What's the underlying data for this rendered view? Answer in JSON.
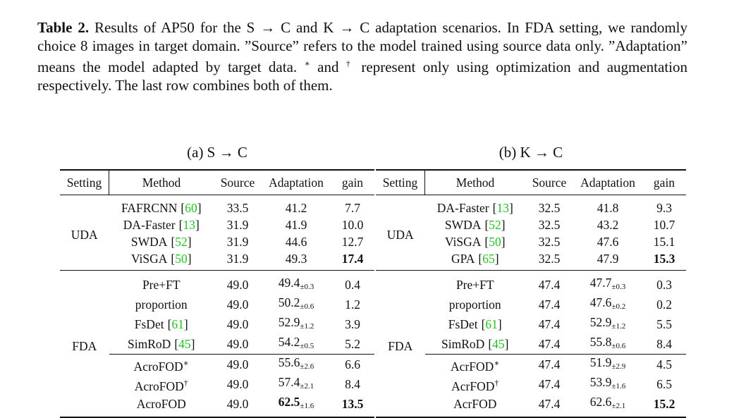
{
  "caption": {
    "label": "Table 2.",
    "text": "Results of AP50 for the S → C and K → C adaptation scenarios. In FDA setting, we randomly choice 8 images in target domain. ”Source” refers to the model trained using source data only. ”Adaptation” means the model adapted by target data.",
    "sym1": "∗",
    "mid": "and",
    "sym2": "†",
    "rest": "represent only using optimization and augmentation respectively. The last row combines both of them."
  },
  "tables": [
    {
      "title": "(a) S → C",
      "header": [
        "Setting",
        "Method",
        "Source",
        "Adaptation",
        "gain"
      ],
      "groups": [
        {
          "setting": "UDA",
          "blocks": [
            [
              {
                "method": "FAFRCNN",
                "cite": "[60]",
                "source": "33.5",
                "adaptation": "41.2",
                "gain": "7.7"
              },
              {
                "method": "DA-Faster",
                "cite": "[13]",
                "source": "31.9",
                "adaptation": "41.9",
                "gain": "10.0"
              },
              {
                "method": "SWDA",
                "cite": "[52]",
                "source": "31.9",
                "adaptation": "44.6",
                "gain": "12.7"
              },
              {
                "method": "ViSGA",
                "cite": "[50]",
                "source": "31.9",
                "adaptation": "49.3",
                "gain": "17.4",
                "bold": [
                  "gain"
                ]
              }
            ]
          ]
        },
        {
          "setting": "FDA",
          "blocks": [
            [
              {
                "method": "Pre+FT",
                "source": "49.0",
                "adaptation": "49.4",
                "std": "±0.3",
                "gain": "0.4"
              },
              {
                "method": "proportion",
                "source": "49.0",
                "adaptation": "50.2",
                "std": "±0.6",
                "gain": "1.2"
              },
              {
                "method": "FsDet",
                "cite": "[61]",
                "source": "49.0",
                "adaptation": "52.9",
                "std": "±1.2",
                "gain": "3.9"
              },
              {
                "method": "SimRoD",
                "cite": "[45]",
                "source": "49.0",
                "adaptation": "54.2",
                "std": "±0.5",
                "gain": "5.2"
              }
            ],
            [
              {
                "method": "AcroFOD",
                "sup": "∗",
                "source": "49.0",
                "adaptation": "55.6",
                "std": "±2.6",
                "gain": "6.6"
              },
              {
                "method": "AcroFOD",
                "sup": "†",
                "source": "49.0",
                "adaptation": "57.4",
                "std": "±2.1",
                "gain": "8.4"
              },
              {
                "method": "AcroFOD",
                "source": "49.0",
                "adaptation": "62.5",
                "std": "±1.6",
                "gain": "13.5",
                "bold": [
                  "adaptation",
                  "gain"
                ]
              }
            ]
          ]
        }
      ]
    },
    {
      "title": "(b) K → C",
      "header": [
        "Setting",
        "Method",
        "Source",
        "Adaptation",
        "gain"
      ],
      "groups": [
        {
          "setting": "UDA",
          "blocks": [
            [
              {
                "method": "DA-Faster",
                "cite": "[13]",
                "source": "32.5",
                "adaptation": "41.8",
                "gain": "9.3"
              },
              {
                "method": "SWDA",
                "cite": "[52]",
                "source": "32.5",
                "adaptation": "43.2",
                "gain": "10.7"
              },
              {
                "method": "ViSGA",
                "cite": "[50]",
                "source": "32.5",
                "adaptation": "47.6",
                "gain": "15.1"
              },
              {
                "method": "GPA",
                "cite": "[65]",
                "source": "32.5",
                "adaptation": "47.9",
                "gain": "15.3",
                "bold": [
                  "gain"
                ]
              }
            ]
          ]
        },
        {
          "setting": "FDA",
          "blocks": [
            [
              {
                "method": "Pre+FT",
                "source": "47.4",
                "adaptation": "47.7",
                "std": "±0.3",
                "gain": "0.3"
              },
              {
                "method": "proportion",
                "source": "47.4",
                "adaptation": "47.6",
                "std": "±0.2",
                "gain": "0.2"
              },
              {
                "method": "FsDet",
                "cite": "[61]",
                "source": "47.4",
                "adaptation": "52.9",
                "std": "±1.2",
                "gain": "5.5"
              },
              {
                "method": "SimRoD",
                "cite": "[45]",
                "source": "47.4",
                "adaptation": "55.8",
                "std": "±0.6",
                "gain": "8.4"
              }
            ],
            [
              {
                "method": "AcrFOD",
                "sup": "∗",
                "source": "47.4",
                "adaptation": "51.9",
                "std": "±2.9",
                "gain": "4.5"
              },
              {
                "method": "AcrFOD",
                "sup": "†",
                "source": "47.4",
                "adaptation": "53.9",
                "std": "±1.6",
                "gain": "6.5"
              },
              {
                "method": "AcrFOD",
                "source": "47.4",
                "adaptation": "62.6",
                "std": "±2.1",
                "gain": "15.2",
                "bold": [
                  "gain"
                ]
              }
            ]
          ]
        }
      ]
    }
  ]
}
